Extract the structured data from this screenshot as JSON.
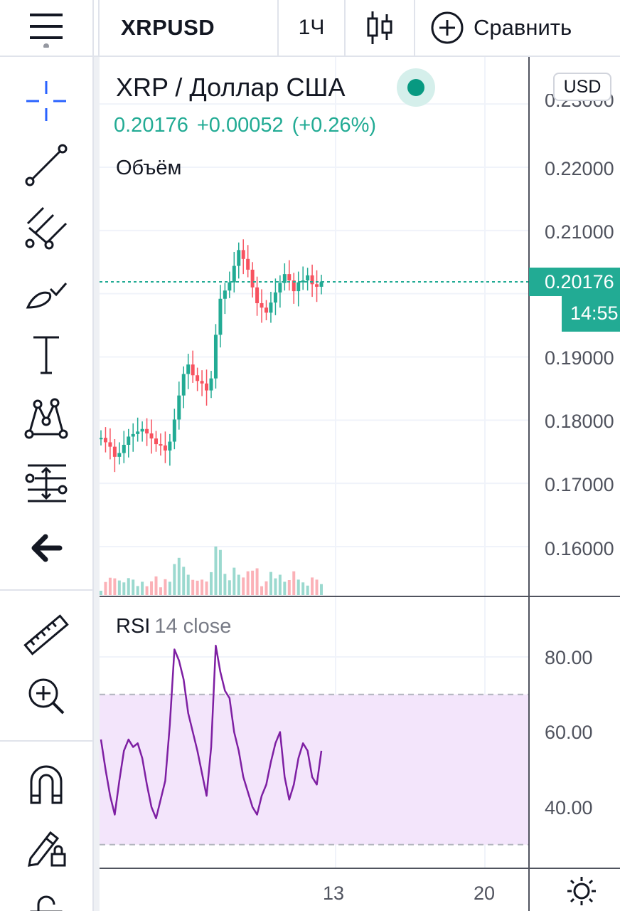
{
  "header": {
    "symbol": "XRPUSD",
    "interval": "1Ч",
    "compare_label": "Сравнить",
    "icons": [
      "hamburger-menu-icon",
      "candlestick-icon",
      "plus-circle-icon"
    ]
  },
  "toolbar": {
    "tools": [
      "crosshair-icon",
      "trend-line-icon",
      "pitchfork-icon",
      "brush-icon",
      "text-icon",
      "pattern-icon",
      "prediction-icon",
      "back-arrow-icon"
    ],
    "tools2": [
      "ruler-icon",
      "zoom-in-icon"
    ],
    "tools3": [
      "magnet-icon",
      "lock-drawings-icon",
      "unlock-icon"
    ]
  },
  "legend": {
    "title": "XRP / Доллар США",
    "last": "0.20176",
    "change": "+0.00052",
    "change_pct": "(+0.26%)",
    "volume_label": "Объём"
  },
  "rsi": {
    "label": "RSI",
    "params": "14 close",
    "upper_band": 70,
    "lower_band": 30
  },
  "price_scale": {
    "currency": "USD",
    "labels": [
      "0.23000",
      "0.22000",
      "0.21000",
      "0.19000",
      "0.18000",
      "0.17000",
      "0.16000"
    ],
    "last_price_tag": "0.20176",
    "countdown": "14:55"
  },
  "rsi_scale": {
    "labels": [
      "80.00",
      "60.00",
      "40.00"
    ]
  },
  "time_scale": {
    "labels": [
      "13",
      "20"
    ]
  },
  "colors": {
    "up": "#22ab94",
    "down": "#f7525f",
    "rsi_line": "#7e1fa3",
    "rsi_band": "#f3e5fb",
    "accent": "#2962ff"
  },
  "chart_data": [
    {
      "type": "line",
      "title": "XRP / Доллар США",
      "ylim": [
        0.155,
        0.232
      ],
      "y": [
        0.1772,
        0.1765,
        0.1758,
        0.1742,
        0.1748,
        0.1761,
        0.1774,
        0.1778,
        0.1782,
        0.1786,
        0.1779,
        0.1771,
        0.1762,
        0.176,
        0.1752,
        0.1766,
        0.1801,
        0.1839,
        0.1873,
        0.1888,
        0.1871,
        0.1862,
        0.1858,
        0.1847,
        0.1866,
        0.1935,
        0.1992,
        0.2005,
        0.2018,
        0.2044,
        0.2069,
        0.2055,
        0.2038,
        0.201,
        0.1985,
        0.1978,
        0.197,
        0.1986,
        0.2002,
        0.2017,
        0.2031,
        0.2021,
        0.2004,
        0.2018,
        0.2021,
        0.2029,
        0.2015,
        0.2011,
        0.2018
      ],
      "last": 0.20176
    },
    {
      "type": "line",
      "title": "RSI 14 close",
      "ylim": [
        20,
        94
      ],
      "y": [
        58,
        50,
        43,
        38,
        47,
        55,
        58,
        56,
        57,
        53,
        46,
        40,
        37,
        42,
        47,
        62,
        82,
        79,
        74,
        65,
        60,
        55,
        49,
        43,
        56,
        83,
        76,
        71,
        69,
        60,
        55,
        48,
        44,
        40,
        38,
        43,
        46,
        52,
        57,
        60,
        48,
        42,
        46,
        53,
        57,
        55,
        48,
        46,
        55
      ],
      "upper_band": 70,
      "lower_band": 30
    }
  ]
}
